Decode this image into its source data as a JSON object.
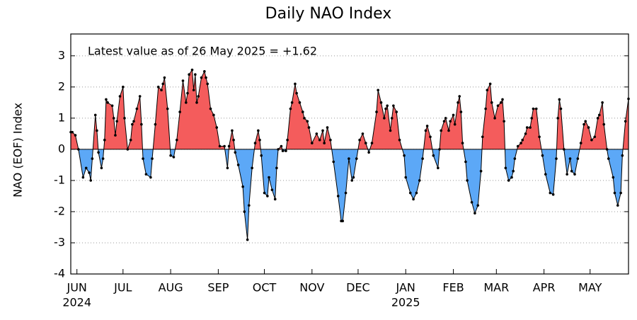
{
  "chart_data": {
    "type": "area-line",
    "title": "Daily NAO Index",
    "y_label": "NAO (EOF) Index",
    "annotation": "Latest value as of 26 May 2025 = +1.62",
    "positive_color": "#f45c5c",
    "negative_color": "#5ca8f7",
    "line_color": "#000000",
    "grid": true,
    "ylim": [
      -4,
      3.7
    ],
    "yticks": [
      -4,
      -3,
      -2,
      -1,
      0,
      1,
      2,
      3
    ],
    "xlim": [
      0,
      363
    ],
    "xticks": [
      {
        "value": 4,
        "label": "JUN"
      },
      {
        "value": 34,
        "label": "JUL"
      },
      {
        "value": 65,
        "label": "AUG"
      },
      {
        "value": 96,
        "label": "SEP"
      },
      {
        "value": 126,
        "label": "OCT"
      },
      {
        "value": 157,
        "label": "NOV"
      },
      {
        "value": 187,
        "label": "DEC"
      },
      {
        "value": 218,
        "label": "JAN"
      },
      {
        "value": 249,
        "label": "FEB"
      },
      {
        "value": 277,
        "label": "MAR"
      },
      {
        "value": 308,
        "label": "APR"
      },
      {
        "value": 338,
        "label": "MAY"
      }
    ],
    "year_labels": [
      {
        "value": 4,
        "label": "2024"
      },
      {
        "value": 218,
        "label": "2025"
      }
    ],
    "x": [
      0,
      1,
      3,
      5,
      8,
      10,
      12,
      13,
      14,
      16,
      17,
      18,
      20,
      21,
      22,
      23,
      24,
      27,
      28,
      29,
      30,
      32,
      34,
      35,
      37,
      39,
      40,
      41,
      43,
      45,
      46,
      47,
      49,
      52,
      53,
      55,
      57,
      59,
      60,
      61,
      63,
      65,
      67,
      69,
      71,
      73,
      75,
      76,
      77,
      79,
      80,
      81,
      82,
      83,
      85,
      87,
      88,
      89,
      91,
      93,
      95,
      97,
      100,
      102,
      103,
      105,
      106,
      107,
      109,
      112,
      113,
      115,
      116,
      118,
      120,
      122,
      123,
      124,
      126,
      128,
      129,
      131,
      133,
      134,
      135,
      137,
      138,
      140,
      141,
      143,
      144,
      146,
      147,
      149,
      151,
      152,
      154,
      155,
      157,
      160,
      162,
      164,
      165,
      167,
      169,
      171,
      174,
      176,
      177,
      179,
      181,
      183,
      184,
      186,
      188,
      190,
      192,
      194,
      196,
      199,
      200,
      202,
      204,
      205,
      206,
      208,
      209,
      210,
      212,
      214,
      217,
      218,
      221,
      223,
      225,
      227,
      229,
      231,
      232,
      234,
      236,
      239,
      240,
      241,
      243,
      244,
      246,
      247,
      249,
      250,
      252,
      253,
      254,
      255,
      257,
      258,
      261,
      263,
      265,
      267,
      268,
      270,
      271,
      273,
      274,
      276,
      278,
      280,
      281,
      282,
      283,
      285,
      287,
      288,
      289,
      291,
      293,
      294,
      296,
      297,
      299,
      300,
      301,
      303,
      305,
      307,
      309,
      312,
      314,
      316,
      317,
      318,
      319,
      321,
      323,
      325,
      326,
      328,
      330,
      332,
      334,
      335,
      337,
      339,
      341,
      343,
      344,
      346,
      347,
      349,
      350,
      353,
      354,
      356,
      358,
      359,
      361,
      363
    ],
    "values": [
      0.55,
      0.55,
      0.45,
      0,
      -0.9,
      -0.6,
      -0.75,
      -1.0,
      -0.3,
      1.1,
      0.6,
      -0.1,
      -0.6,
      -0.3,
      0.3,
      1.6,
      1.5,
      1.4,
      1.0,
      0.45,
      0.9,
      1.7,
      2.0,
      1.0,
      0,
      0.3,
      0.8,
      0.9,
      1.3,
      1.7,
      0.8,
      -0.3,
      -0.8,
      -0.9,
      -0.3,
      0.8,
      2.0,
      1.9,
      2.1,
      2.3,
      1.3,
      -0.2,
      -0.25,
      0.3,
      1.2,
      2.2,
      1.5,
      1.8,
      2.4,
      2.55,
      1.9,
      2.4,
      1.5,
      1.7,
      2.3,
      2.5,
      2.3,
      2.1,
      1.3,
      1.1,
      0.7,
      0.1,
      0.1,
      -0.6,
      0.1,
      0.6,
      0.3,
      -0.1,
      -0.5,
      -1.2,
      -2.0,
      -2.9,
      -1.8,
      -0.6,
      0.2,
      0.6,
      0.3,
      -0.2,
      -1.4,
      -1.5,
      -0.9,
      -1.3,
      -1.6,
      -0.6,
      0,
      0.1,
      -0.05,
      -0.05,
      0.3,
      1.3,
      1.5,
      2.1,
      1.8,
      1.5,
      1.2,
      1.0,
      0.9,
      0.7,
      0.2,
      0.5,
      0.3,
      0.6,
      0.2,
      0.7,
      0.3,
      -0.4,
      -1.5,
      -2.3,
      -2.3,
      -1.4,
      -0.3,
      -1.0,
      -0.9,
      -0.3,
      0.3,
      0.5,
      0.2,
      -0.1,
      0.2,
      1.2,
      1.9,
      1.5,
      1.0,
      1.3,
      1.4,
      0.6,
      1.0,
      1.4,
      1.2,
      0.3,
      -0.2,
      -0.9,
      -1.4,
      -1.6,
      -1.4,
      -1.0,
      -0.3,
      0.6,
      0.75,
      0.4,
      -0.2,
      -0.6,
      0,
      0.6,
      0.9,
      1.0,
      0.6,
      0.9,
      1.1,
      0.8,
      1.5,
      1.7,
      1.2,
      0.2,
      -0.4,
      -1.0,
      -1.7,
      -2.05,
      -1.8,
      -0.7,
      0.4,
      1.3,
      1.9,
      2.1,
      1.5,
      1.0,
      1.4,
      1.5,
      1.6,
      0.9,
      -0.6,
      -1.0,
      -0.9,
      -0.7,
      -0.3,
      0.1,
      0.2,
      0.3,
      0.5,
      0.7,
      0.7,
      1.0,
      1.3,
      1.3,
      0.4,
      -0.2,
      -0.8,
      -1.4,
      -1.45,
      -0.3,
      1.0,
      1.6,
      1.3,
      0,
      -0.8,
      -0.3,
      -0.7,
      -0.8,
      -0.3,
      0.2,
      0.8,
      0.9,
      0.7,
      0.3,
      0.4,
      1.0,
      1.1,
      1.5,
      0.8,
      0,
      -0.3,
      -0.9,
      -1.4,
      -1.8,
      -1.4,
      -0.2,
      0.9,
      1.62
    ]
  }
}
